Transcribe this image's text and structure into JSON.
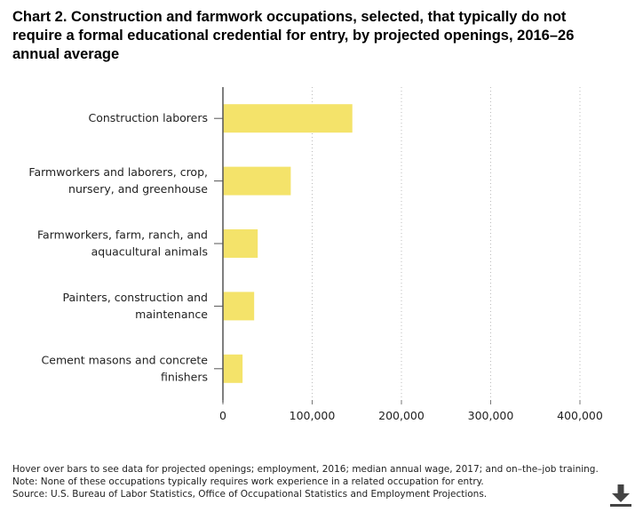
{
  "title": "Chart 2. Construction and farmwork occupations, selected, that typically do not require a formal educational credential for entry, by projected openings, 2016–26 annual average",
  "notes": {
    "hover": "Hover over bars to see data for projected openings; employment, 2016; median annual wage, 2017; and on–the–job training.",
    "note": "Note: None of these occupations typically requires work experience in a related occupation for entry.",
    "source": "Source: U.S. Bureau of Labor Statistics, Office of Occupational Statistics and Employment Projections."
  },
  "download_icon": "download-icon",
  "chart_data": {
    "type": "bar",
    "orientation": "horizontal",
    "categories": [
      [
        "Construction laborers"
      ],
      [
        "Farmworkers and laborers, crop,",
        "nursery, and greenhouse"
      ],
      [
        "Farmworkers, farm, ranch, and",
        "aquacultural animals"
      ],
      [
        "Painters, construction and",
        "maintenance"
      ],
      [
        "Cement masons and concrete",
        "finishers"
      ]
    ],
    "values": [
      145000,
      76000,
      39000,
      35000,
      22000
    ],
    "xlim": [
      0,
      400000
    ],
    "xticks": [
      0,
      100000,
      200000,
      300000,
      400000
    ],
    "xtick_labels": [
      "0",
      "100,000",
      "200,000",
      "300,000",
      "400,000"
    ],
    "bar_color": "#F4E36A",
    "grid": "vertical dotted",
    "legend": "none",
    "title": "",
    "xlabel": "",
    "ylabel": ""
  }
}
